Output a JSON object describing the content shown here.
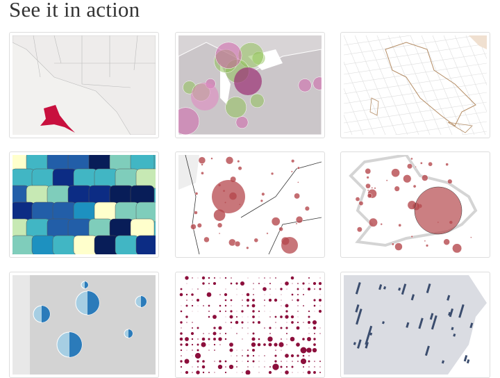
{
  "heading": "See it in action",
  "examples": [
    {
      "name": "us-states-alaska",
      "bg": "#f2f1ef",
      "accent": "#c8103e"
    },
    {
      "name": "great-lakes-bubbles",
      "bg": "#d8d4d6",
      "accent": "#b04a8a"
    },
    {
      "name": "italy-graticule",
      "bg": "#ffffff",
      "accent": "#b48c64"
    },
    {
      "name": "choropleth-regions",
      "bg": "#41b6c4",
      "accent": "#081d58"
    },
    {
      "name": "paris-proportional-circles",
      "bg": "#ffffff",
      "accent": "#b5484d"
    },
    {
      "name": "england-proportional-circles",
      "bg": "#ffffff",
      "accent": "#b5484d"
    },
    {
      "name": "spain-pie-charts",
      "bg": "#d9d9d9",
      "accent": "#2b7bba"
    },
    {
      "name": "dot-density-grid",
      "bg": "#ffffff",
      "accent": "#8c0f3c"
    },
    {
      "name": "us-spike-map",
      "bg": "#ffffff",
      "accent": "#3b4d6e"
    }
  ]
}
